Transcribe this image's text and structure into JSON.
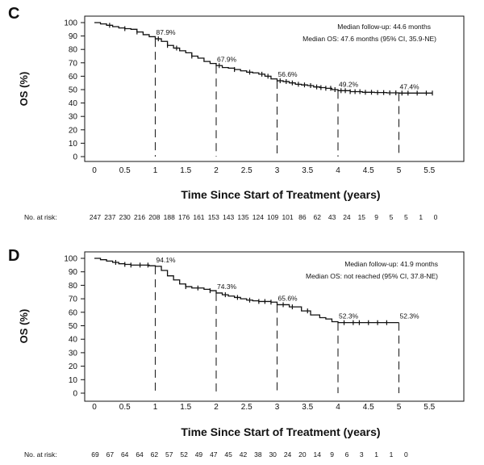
{
  "chart_data": [
    {
      "type": "line",
      "panel": "C",
      "ylabel": "OS (%)",
      "xlabel": "Time Since Start of Treatment (years)",
      "xlim": [
        0,
        5.9
      ],
      "ylim": [
        0,
        100
      ],
      "xticks": [
        "0",
        "0.5",
        "1",
        "1.5",
        "2",
        "2.5",
        "3",
        "3.5",
        "4",
        "4.5",
        "5",
        "5.5"
      ],
      "yticks": [
        "0",
        "10",
        "20",
        "30",
        "40",
        "50",
        "60",
        "70",
        "80",
        "90",
        "100"
      ],
      "curve": {
        "x": [
          0,
          0.1,
          0.2,
          0.3,
          0.4,
          0.5,
          0.6,
          0.7,
          0.8,
          0.9,
          1.0,
          1.1,
          1.2,
          1.3,
          1.4,
          1.5,
          1.6,
          1.7,
          1.8,
          1.9,
          2.0,
          2.1,
          2.2,
          2.3,
          2.4,
          2.5,
          2.6,
          2.7,
          2.8,
          2.9,
          3.0,
          3.1,
          3.2,
          3.3,
          3.4,
          3.5,
          3.6,
          3.7,
          3.8,
          3.9,
          4.0,
          4.2,
          4.4,
          4.6,
          4.8,
          5.0,
          5.2,
          5.4,
          5.55
        ],
        "y": [
          100,
          99,
          98,
          97,
          96,
          95.5,
          95,
          93,
          91,
          89.5,
          87.9,
          86,
          83,
          81,
          79,
          77.5,
          75,
          73.5,
          71,
          69.5,
          67.9,
          66.5,
          66,
          65,
          64,
          63,
          62.5,
          61.5,
          60,
          58,
          56.6,
          56,
          55,
          54,
          53.5,
          53,
          52,
          51.5,
          51,
          50,
          49.2,
          48.5,
          48,
          47.8,
          47.6,
          47.4,
          47.4,
          47.4,
          47.4
        ]
      },
      "censor_x": [
        0.25,
        0.5,
        0.7,
        1.05,
        1.2,
        1.35,
        1.6,
        2.05,
        2.3,
        2.55,
        2.75,
        2.85,
        3.05,
        3.15,
        3.25,
        3.35,
        3.45,
        3.55,
        3.65,
        3.72,
        3.8,
        3.88,
        3.95,
        4.05,
        4.12,
        4.2,
        4.28,
        4.36,
        4.45,
        4.55,
        4.65,
        4.75,
        4.85,
        4.95,
        5.05,
        5.15,
        5.3,
        5.45,
        5.55
      ],
      "landmarks": [
        {
          "x": 1,
          "y": 87.9,
          "label": "87.9%"
        },
        {
          "x": 2,
          "y": 67.9,
          "label": "67.9%"
        },
        {
          "x": 3,
          "y": 56.6,
          "label": "56.6%"
        },
        {
          "x": 4,
          "y": 49.2,
          "label": "49.2%"
        },
        {
          "x": 5,
          "y": 47.4,
          "label": "47.4%"
        }
      ],
      "annotations": [
        "Median follow-up: 44.6 months",
        "Median OS: 47.6 months (95% CI, 35.9-NE)"
      ],
      "risk_label": "No. at risk:",
      "at_risk": [
        "247",
        "237",
        "230",
        "216",
        "208",
        "188",
        "176",
        "161",
        "153",
        "143",
        "135",
        "124",
        "109",
        "101",
        "86",
        "62",
        "43",
        "24",
        "15",
        "9",
        "5",
        "5",
        "1",
        "0"
      ]
    },
    {
      "type": "line",
      "panel": "D",
      "ylabel": "OS (%)",
      "xlabel": "Time Since Start of Treatment (years)",
      "xlim": [
        0,
        5.9
      ],
      "ylim": [
        0,
        100
      ],
      "xticks": [
        "0",
        "0.5",
        "1",
        "1.5",
        "2",
        "2.5",
        "3",
        "3.5",
        "4",
        "4.5",
        "5",
        "5.5"
      ],
      "yticks": [
        "0",
        "10",
        "20",
        "30",
        "40",
        "50",
        "60",
        "70",
        "80",
        "90",
        "100"
      ],
      "curve": {
        "x": [
          0,
          0.1,
          0.2,
          0.3,
          0.4,
          0.5,
          0.6,
          0.7,
          0.8,
          0.9,
          1.0,
          1.1,
          1.2,
          1.3,
          1.4,
          1.5,
          1.6,
          1.7,
          1.8,
          1.9,
          2.0,
          2.1,
          2.2,
          2.3,
          2.4,
          2.5,
          2.6,
          2.7,
          2.8,
          2.9,
          3.0,
          3.2,
          3.4,
          3.55,
          3.7,
          3.8,
          3.9,
          4.0,
          4.2,
          4.4,
          4.6,
          4.8,
          5.0
        ],
        "y": [
          100,
          99,
          98,
          97,
          96,
          95.5,
          95,
          95,
          95,
          94.5,
          94.1,
          91,
          87,
          84,
          81,
          79,
          78,
          78,
          77,
          76,
          74.3,
          73,
          72,
          71,
          70,
          69,
          68.5,
          68,
          68,
          67.5,
          65.6,
          64,
          61,
          58,
          56,
          55,
          53,
          52.3,
          52.3,
          52.3,
          52.3,
          52.3,
          52.3
        ]
      },
      "censor_x": [
        0.35,
        0.5,
        0.6,
        0.75,
        0.88,
        1.5,
        1.7,
        1.9,
        2.15,
        2.35,
        2.55,
        2.7,
        2.8,
        2.9,
        3.1,
        3.25,
        3.5,
        4.1,
        4.25,
        4.35,
        4.5,
        4.65,
        4.8
      ],
      "landmarks": [
        {
          "x": 1,
          "y": 94.1,
          "label": "94.1%"
        },
        {
          "x": 2,
          "y": 74.3,
          "label": "74.3%"
        },
        {
          "x": 3,
          "y": 65.6,
          "label": "65.6%"
        },
        {
          "x": 4,
          "y": 52.3,
          "label": "52.3%"
        },
        {
          "x": 5,
          "y": 52.3,
          "label": "52.3%"
        }
      ],
      "annotations": [
        "Median follow-up: 41.9 months",
        "Median OS: not reached (95% CI, 37.8-NE)"
      ],
      "risk_label": "No. at risk:",
      "at_risk": [
        "69",
        "67",
        "64",
        "64",
        "62",
        "57",
        "52",
        "49",
        "47",
        "45",
        "42",
        "38",
        "30",
        "24",
        "20",
        "14",
        "9",
        "6",
        "3",
        "1",
        "1",
        "0"
      ]
    }
  ]
}
